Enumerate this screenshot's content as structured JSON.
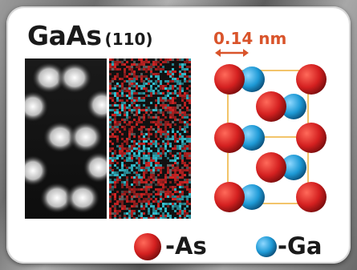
{
  "title": {
    "compound": "GaAs",
    "surface": "(110)"
  },
  "scale_bar": {
    "label": "0.14 nm",
    "color": "#d9542b"
  },
  "legend": {
    "items": [
      {
        "symbol": "As",
        "label": "-As",
        "color": "#d42020"
      },
      {
        "symbol": "Ga",
        "label": "-Ga",
        "color": "#1e9ad6"
      }
    ]
  },
  "colors": {
    "as_atom": "#d42020",
    "ga_atom": "#1e9ad6",
    "unit_cell": "#f2c46a",
    "panel_bg": "#ffffff"
  }
}
